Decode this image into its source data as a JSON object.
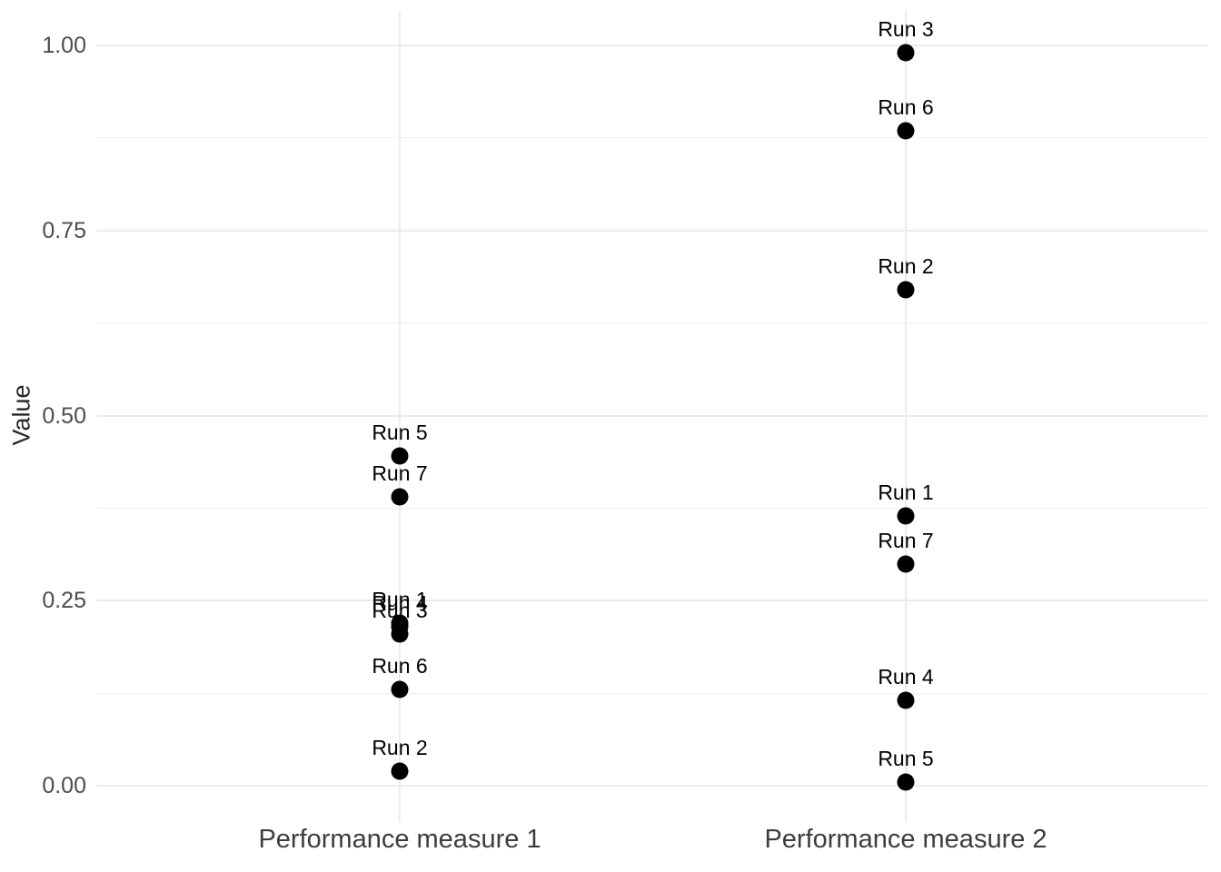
{
  "chart_data": {
    "type": "scatter",
    "title": "",
    "ylabel": "Value",
    "xlabel": "",
    "categories": [
      "Performance measure 1",
      "Performance measure 2"
    ],
    "series": [
      {
        "name": "Run 1",
        "values": [
          0.22,
          0.365
        ]
      },
      {
        "name": "Run 2",
        "values": [
          0.02,
          0.67
        ]
      },
      {
        "name": "Run 3",
        "values": [
          0.205,
          0.99
        ]
      },
      {
        "name": "Run 4",
        "values": [
          0.215,
          0.115
        ]
      },
      {
        "name": "Run 5",
        "values": [
          0.445,
          0.005
        ]
      },
      {
        "name": "Run 6",
        "values": [
          0.13,
          0.885
        ]
      },
      {
        "name": "Run 7",
        "values": [
          0.39,
          0.3
        ]
      }
    ],
    "ylim": [
      0.0,
      1.0
    ],
    "yticks": [
      0.0,
      0.25,
      0.5,
      0.75,
      1.0
    ],
    "ytick_labels": [
      "0.00",
      "0.25",
      "0.50",
      "0.75",
      "1.00"
    ],
    "minor_yticks": [
      0.125,
      0.375,
      0.625,
      0.875
    ],
    "grid": "horizontal major+minor, vertical at categories",
    "legend": "none",
    "point_color": "#000000",
    "point_label_color": "#000000",
    "axis_text_color": "#4d4d4d",
    "axis_title_color": "#262626",
    "grid_color": "#ebebeb",
    "background_color": "#ffffff"
  }
}
